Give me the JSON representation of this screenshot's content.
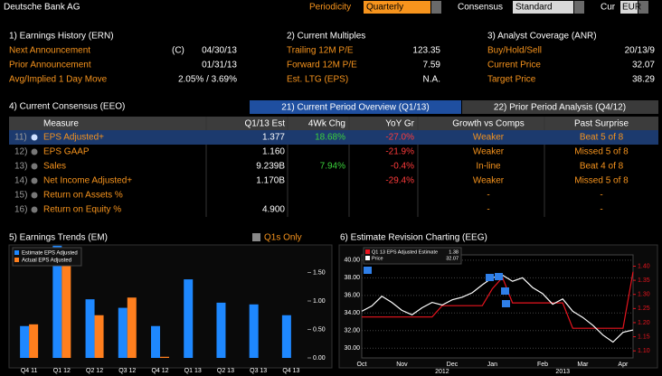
{
  "header": {
    "title": "Deutsche Bank AG",
    "periodicity_label": "Periodicity",
    "periodicity": "Quarterly",
    "consensus_label": "Consensus",
    "consensus": "Standard",
    "currency_label": "Cur",
    "currency": "EUR"
  },
  "panels": [
    {
      "title": "1) Earnings History (ERN)",
      "rows": [
        [
          "Next Announcement",
          "(C)",
          "04/30/13"
        ],
        [
          "Prior Announcement",
          "01/31/13"
        ],
        [
          "Avg/Implied 1 Day Move",
          "2.05% / 3.69%"
        ]
      ]
    },
    {
      "title": "2) Current Multiples",
      "rows": [
        [
          "Trailing 12M P/E",
          "123.35"
        ],
        [
          "Forward 12M P/E",
          "7.59"
        ],
        [
          "Est. LTG (EPS)",
          "N.A."
        ]
      ]
    },
    {
      "title": "3) Analyst Coverage (ANR)",
      "rows": [
        [
          "Buy/Hold/Sell",
          "20/13/9"
        ],
        [
          "Current Price",
          "32.07"
        ],
        [
          "Target Price",
          "38.29"
        ]
      ]
    }
  ],
  "consensus": {
    "title": "4) Current Consensus (EEO)",
    "tabs": [
      "21) Current Period Overview (Q1/13)",
      "22) Prior Period Analysis (Q4/12)"
    ],
    "columns": [
      "Measure",
      "Q1/13 Est",
      "4Wk Chg",
      "YoY Gr",
      "Growth vs Comps",
      "Past Surprise"
    ],
    "rows": [
      [
        "11)",
        "EPS Adjusted+",
        "1.377",
        "18.68%",
        "-27.0%",
        "Weaker",
        "Beat 5 of 8"
      ],
      [
        "12)",
        "EPS GAAP",
        "1.160",
        null,
        "-21.9%",
        "Weaker",
        "Missed 5 of 8"
      ],
      [
        "13)",
        "Sales",
        "9.239B",
        "7.94%",
        "-0.4%",
        "In-line",
        "Beat 4 of 8"
      ],
      [
        "14)",
        "Net Income Adjusted+",
        "1.170B",
        null,
        "-29.4%",
        "Weaker",
        "Missed 5 of 8"
      ],
      [
        "15)",
        "Return on Assets %",
        null,
        null,
        null,
        "-",
        "-"
      ],
      [
        "16)",
        "Return on Equity %",
        "4.900",
        null,
        null,
        "-",
        "-"
      ]
    ]
  },
  "trends": {
    "title": "5) Earnings Trends (EM)",
    "toggle": "Q1s Only"
  },
  "revisions": {
    "title": "6) Estimate Revision Charting (EEG)"
  },
  "chart_data": [
    {
      "type": "bar",
      "categories": [
        "Q4 11",
        "Q1 12",
        "Q2 12",
        "Q3 12",
        "Q4 12",
        "Q1 13",
        "Q2 13",
        "Q3 13",
        "Q4 13"
      ],
      "series": [
        {
          "name": "Estimate EPS Adjusted",
          "color": "#1e88ff",
          "values": [
            0.56,
            1.97,
            1.03,
            0.88,
            0.56,
            1.38,
            0.97,
            0.94,
            0.75
          ]
        },
        {
          "name": "Actual EPS Adjusted",
          "color": "#ff7f1e",
          "values": [
            0.59,
            1.75,
            0.75,
            1.06,
            0.02,
            null,
            null,
            null,
            null
          ]
        }
      ],
      "ylim": [
        0,
        2
      ],
      "yticks": [
        {
          "value": 0,
          "label": "0.00"
        },
        {
          "value": 0.5,
          "label": "0.50"
        },
        {
          "value": 1,
          "label": "1.00"
        },
        {
          "value": 1.5,
          "label": "1.50"
        }
      ]
    },
    {
      "type": "line",
      "categories": [
        "Oct",
        null,
        null,
        null,
        "Nov",
        null,
        null,
        null,
        null,
        "Dec",
        null,
        null,
        null,
        "Jan",
        null,
        null,
        null,
        null,
        "Feb",
        null,
        null,
        null,
        "Mar",
        null,
        null,
        null,
        "Apr",
        null
      ],
      "year_labels": [
        "2012",
        "2013"
      ],
      "grid": true,
      "series": [
        {
          "name": "Q1 13 EPS Adjusted Estimate",
          "legend_value": "1.38",
          "color": "#e8141e",
          "axis": "y2",
          "values": [
            1.22,
            1.22,
            1.22,
            1.22,
            1.22,
            1.22,
            1.22,
            1.22,
            1.26,
            1.26,
            1.26,
            1.26,
            1.26,
            1.32,
            1.36,
            1.27,
            1.27,
            1.27,
            1.27,
            1.27,
            1.27,
            1.18,
            1.18,
            1.18,
            1.18,
            1.18,
            1.18,
            1.38
          ]
        },
        {
          "name": "Price",
          "legend_value": "32.07",
          "color": "#ffffff",
          "values": [
            34.2,
            34.8,
            35.9,
            35.2,
            34.3,
            33.8,
            34.6,
            35.2,
            34.9,
            35.5,
            35.8,
            36.3,
            37.2,
            38.0,
            38.3,
            37.6,
            38.0,
            36.9,
            36.2,
            35.0,
            35.6,
            34.2,
            33.5,
            32.6,
            31.5,
            30.7,
            31.8,
            32.07
          ]
        }
      ],
      "ylim": [
        28.9,
        40.6
      ],
      "yticks": [
        {
          "value": 30,
          "label": "30.00"
        },
        {
          "value": 32,
          "label": "32.00"
        },
        {
          "value": 34,
          "label": "34.00"
        },
        {
          "value": 36,
          "label": "36.00"
        },
        {
          "value": 38,
          "label": "38.00"
        },
        {
          "value": 40,
          "label": "40.00"
        }
      ],
      "y2lim": [
        1.075,
        1.44
      ],
      "y2ticks": [
        {
          "value": 1.1,
          "label": "1.10"
        },
        {
          "value": 1.15,
          "label": "1.15"
        },
        {
          "value": 1.2,
          "label": "1.20"
        },
        {
          "value": 1.25,
          "label": "1.25"
        },
        {
          "value": 1.3,
          "label": "1.30"
        },
        {
          "value": 1.35,
          "label": "1.35"
        },
        {
          "value": 1.4,
          "label": "1.40"
        }
      ]
    }
  ]
}
